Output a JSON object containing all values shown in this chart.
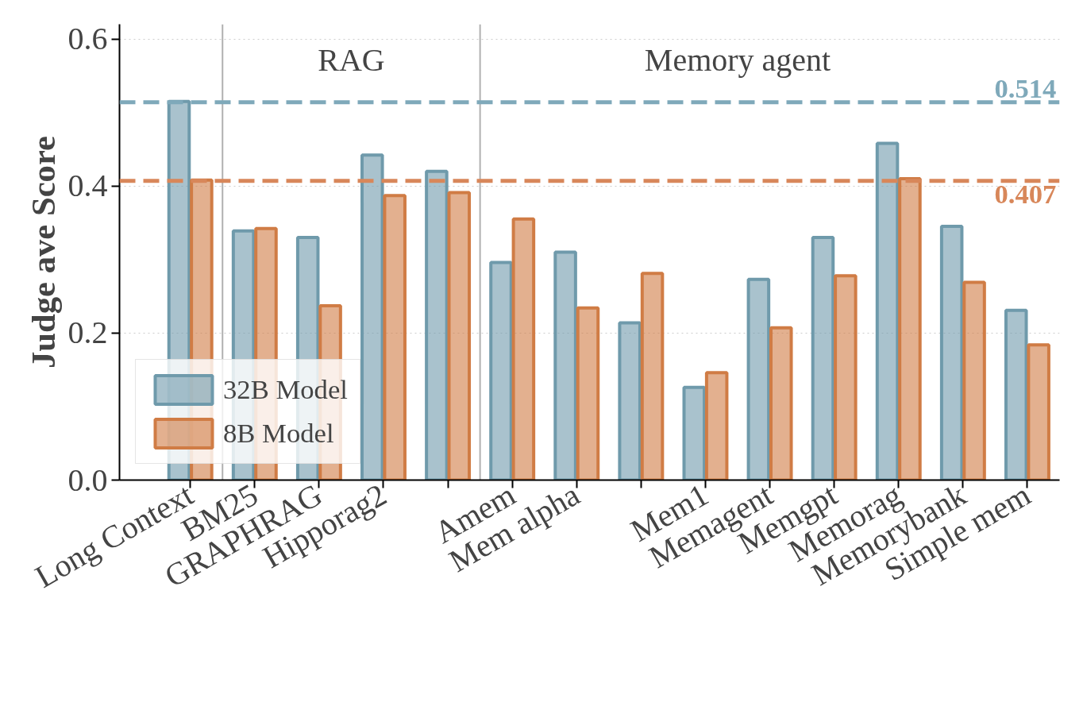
{
  "chart_data": {
    "type": "bar",
    "ylabel": "Judge ave Score",
    "categories": [
      "Long Context",
      "BM25",
      "GRAPHRAG",
      "Hipporag2",
      null,
      "Amem",
      "Mem alpha",
      null,
      "Mem1",
      "Memagent",
      "Memgpt",
      "Memorag",
      "Memorybank",
      "Simple mem"
    ],
    "series": [
      {
        "name": "32B Model",
        "color": "#6f9aab",
        "values": [
          0.515,
          0.339,
          0.33,
          0.442,
          0.42,
          0.296,
          0.31,
          0.214,
          0.126,
          0.273,
          0.33,
          0.458,
          0.345,
          0.231
        ]
      },
      {
        "name": "8B Model",
        "color": "#d07c45",
        "values": [
          0.408,
          0.342,
          0.237,
          0.387,
          0.391,
          0.355,
          0.234,
          0.281,
          0.146,
          0.207,
          0.278,
          0.41,
          0.269,
          0.184
        ]
      }
    ],
    "ylim": [
      0,
      0.62
    ],
    "yticks": [
      {
        "value": 0,
        "label": "0.0"
      },
      0.2,
      0.4,
      0.6
    ],
    "grid": "y",
    "legend": "bottom left",
    "ref_lines": [
      {
        "axis": "y",
        "value": 0.514,
        "label": "0.514",
        "color": "#7fa9ba",
        "line_style": "dashed"
      },
      {
        "axis": "y",
        "value": 0.407,
        "label": "0.407",
        "color": "#d8875a",
        "line_style": "dashed"
      }
    ],
    "annotations": [
      "RAG",
      "Memory agent"
    ]
  }
}
